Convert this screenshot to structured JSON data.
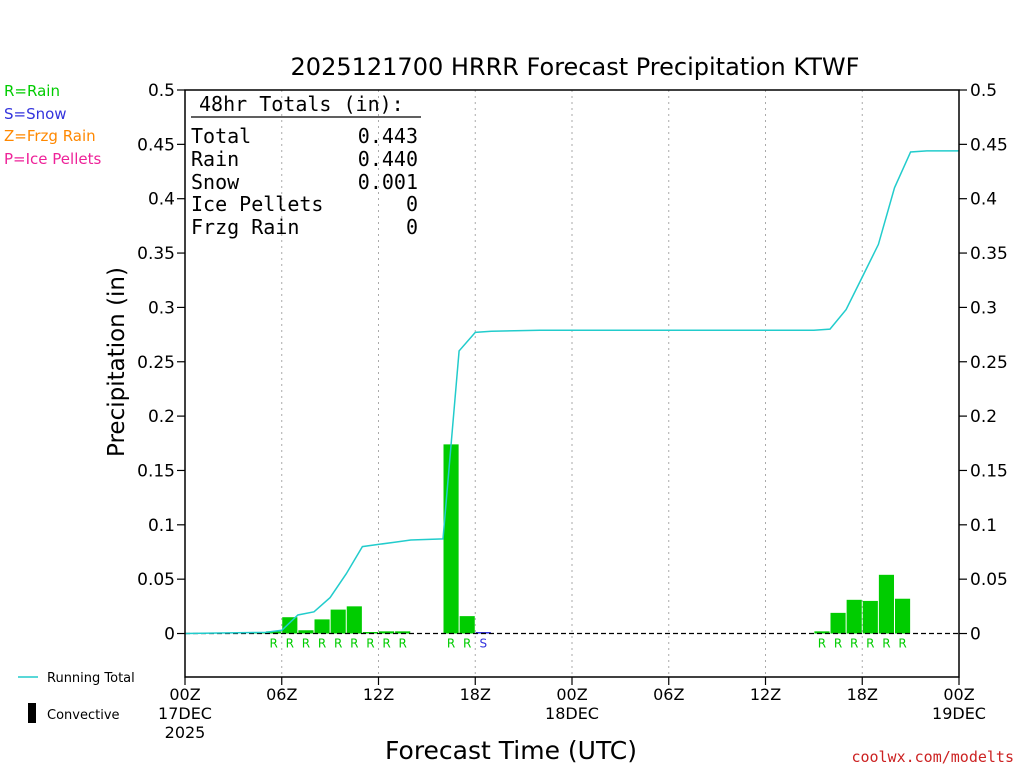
{
  "chart_data": {
    "type": "bar",
    "title": "2025121700 HRRR Forecast Precipitation KTWF",
    "xlabel": "Forecast Time (UTC)",
    "ylabel": "Precipitation (in)",
    "ylim": [
      -0.04,
      0.5
    ],
    "xlim_hours": [
      0,
      48
    ],
    "y_ticks": [
      "0",
      "0.05",
      "0.1",
      "0.15",
      "0.2",
      "0.25",
      "0.3",
      "0.35",
      "0.4",
      "0.45",
      "0.5"
    ],
    "y_tick_values": [
      0,
      0.05,
      0.1,
      0.15,
      0.2,
      0.25,
      0.3,
      0.35,
      0.4,
      0.45,
      0.5
    ],
    "x_ticks": [
      {
        "h": 0,
        "line1": "00Z",
        "line2": "17DEC",
        "line3": "2025"
      },
      {
        "h": 6,
        "line1": "06Z",
        "line2": "",
        "line3": ""
      },
      {
        "h": 12,
        "line1": "12Z",
        "line2": "",
        "line3": ""
      },
      {
        "h": 18,
        "line1": "18Z",
        "line2": "",
        "line3": ""
      },
      {
        "h": 24,
        "line1": "00Z",
        "line2": "18DEC",
        "line3": ""
      },
      {
        "h": 30,
        "line1": "06Z",
        "line2": "",
        "line3": ""
      },
      {
        "h": 36,
        "line1": "12Z",
        "line2": "",
        "line3": ""
      },
      {
        "h": 42,
        "line1": "18Z",
        "line2": "",
        "line3": ""
      },
      {
        "h": 48,
        "line1": "00Z",
        "line2": "19DEC",
        "line3": ""
      }
    ],
    "grid": "vertical-dotted",
    "series": [
      {
        "name": "Rain",
        "color": "#00cc00",
        "points": [
          {
            "h": 5,
            "v": 0.001
          },
          {
            "h": 6,
            "v": 0.002
          },
          {
            "h": 7,
            "v": 0.015
          },
          {
            "h": 8,
            "v": 0.003
          },
          {
            "h": 9,
            "v": 0.013
          },
          {
            "h": 10,
            "v": 0.022
          },
          {
            "h": 11,
            "v": 0.025
          },
          {
            "h": 12,
            "v": 0.001
          },
          {
            "h": 13,
            "v": 0.002
          },
          {
            "h": 14,
            "v": 0.002
          },
          {
            "h": 17,
            "v": 0.174
          },
          {
            "h": 18,
            "v": 0.016
          },
          {
            "h": 40,
            "v": 0.002
          },
          {
            "h": 41,
            "v": 0.019
          },
          {
            "h": 42,
            "v": 0.031
          },
          {
            "h": 43,
            "v": 0.03
          },
          {
            "h": 44,
            "v": 0.054
          },
          {
            "h": 45,
            "v": 0.032
          }
        ]
      },
      {
        "name": "Snow",
        "color": "#3333dd",
        "points": [
          {
            "h": 19,
            "v": 0.001
          }
        ]
      }
    ],
    "running_total": {
      "name": "Running Total",
      "color": "#22cccc",
      "points": [
        {
          "h": 0,
          "v": 0
        },
        {
          "h": 5,
          "v": 0.001
        },
        {
          "h": 6,
          "v": 0.003
        },
        {
          "h": 7,
          "v": 0.017
        },
        {
          "h": 8,
          "v": 0.02
        },
        {
          "h": 9,
          "v": 0.033
        },
        {
          "h": 10,
          "v": 0.055
        },
        {
          "h": 11,
          "v": 0.08
        },
        {
          "h": 12,
          "v": 0.082
        },
        {
          "h": 13,
          "v": 0.084
        },
        {
          "h": 14,
          "v": 0.086
        },
        {
          "h": 16,
          "v": 0.087
        },
        {
          "h": 17,
          "v": 0.26
        },
        {
          "h": 18,
          "v": 0.277
        },
        {
          "h": 19,
          "v": 0.278
        },
        {
          "h": 22,
          "v": 0.279
        },
        {
          "h": 39,
          "v": 0.279
        },
        {
          "h": 40,
          "v": 0.28
        },
        {
          "h": 41,
          "v": 0.298
        },
        {
          "h": 42,
          "v": 0.328
        },
        {
          "h": 43,
          "v": 0.358
        },
        {
          "h": 44,
          "v": 0.41
        },
        {
          "h": 45,
          "v": 0.443
        },
        {
          "h": 46,
          "v": 0.444
        },
        {
          "h": 48,
          "v": 0.444
        }
      ]
    },
    "type_markers": [
      {
        "h": 6,
        "t": "R"
      },
      {
        "h": 7,
        "t": "R"
      },
      {
        "h": 8,
        "t": "R"
      },
      {
        "h": 9,
        "t": "R"
      },
      {
        "h": 10,
        "t": "R"
      },
      {
        "h": 11,
        "t": "R"
      },
      {
        "h": 12,
        "t": "R"
      },
      {
        "h": 13,
        "t": "R"
      },
      {
        "h": 14,
        "t": "R"
      },
      {
        "h": 17,
        "t": "R"
      },
      {
        "h": 18,
        "t": "R"
      },
      {
        "h": 19,
        "t": "S"
      },
      {
        "h": 40,
        "t": "R"
      },
      {
        "h": 41,
        "t": "R"
      },
      {
        "h": 42,
        "t": "R"
      },
      {
        "h": 43,
        "t": "R"
      },
      {
        "h": 44,
        "t": "R"
      },
      {
        "h": 45,
        "t": "R"
      }
    ],
    "type_colors": {
      "R": "#00cc00",
      "S": "#3333dd",
      "Z": "#ff8800",
      "P": "#ee2299"
    },
    "type_legend": [
      {
        "text": "R=Rain",
        "color": "#00cc00"
      },
      {
        "text": "S=Snow",
        "color": "#3333dd"
      },
      {
        "text": "Z=Frzg Rain",
        "color": "#ff8800"
      },
      {
        "text": "P=Ice Pellets",
        "color": "#ee2299"
      }
    ],
    "legend": {
      "placement": "bottom-left",
      "running_total": "Running Total",
      "convective": "Convective"
    },
    "totals_box": {
      "heading": "48hr Totals (in):",
      "rows": [
        {
          "label": "Total",
          "value": "0.443"
        },
        {
          "label": "Rain",
          "value": "0.440"
        },
        {
          "label": "Snow",
          "value": "0.001"
        },
        {
          "label": "Ice Pellets",
          "value": "0"
        },
        {
          "label": "Frzg Rain",
          "value": "0"
        }
      ]
    },
    "credit": "coolwx.com/modelts"
  }
}
